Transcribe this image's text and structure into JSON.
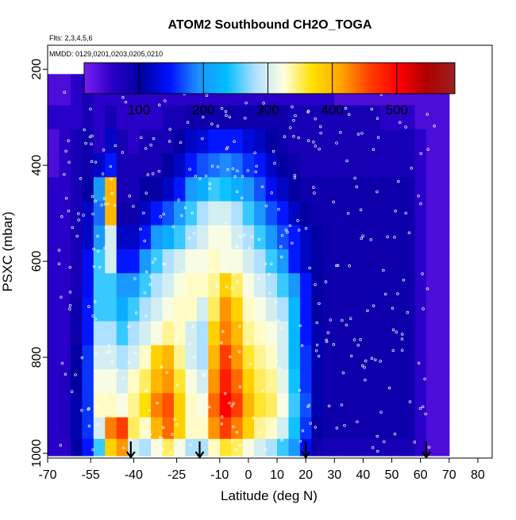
{
  "chart_data": {
    "type": "heatmap",
    "title": "ATOM2 Southbound CH2O_TOGA",
    "flights_note": "Flts: 2,3,4,5,6",
    "dates_note": "MMDD: 0129,0201,0203,0205,0210",
    "xlabel": "Latitude (deg N)",
    "ylabel": "PSXC (mbar)",
    "xlim": [
      -70,
      85
    ],
    "ylim": [
      1010,
      150
    ],
    "x_ticks": [
      -70,
      -55,
      -40,
      -25,
      -10,
      0,
      10,
      20,
      30,
      40,
      50,
      60,
      70,
      80
    ],
    "x_ticks_labels": [
      "-70",
      "-55",
      "-40",
      "-25",
      "-10",
      "0",
      "10",
      "20",
      "30",
      "40",
      "50",
      "60",
      "70",
      "80"
    ],
    "y_ticks": [
      200,
      400,
      600,
      800,
      1000
    ],
    "y_ticks_labels": [
      "200",
      "400",
      "600",
      "800",
      "1000"
    ],
    "colorbar": {
      "min": 15,
      "max": 590,
      "ticks": [
        100,
        200,
        300,
        400,
        500
      ],
      "tick_labels": [
        "100",
        "200",
        "300",
        "400",
        "500"
      ],
      "colors": [
        "#7a1ef0",
        "#2a00c8",
        "#0000a0",
        "#0010ff",
        "#1e90ff",
        "#00bfff",
        "#b0e0ff",
        "#ffffe0",
        "#ffe000",
        "#ffa500",
        "#ff4000",
        "#ff0000",
        "#b00000",
        "#9b2020"
      ]
    },
    "lat_bins": [
      -70,
      -66,
      -62,
      -58,
      -54,
      -50,
      -46,
      -42,
      -38,
      -34,
      -30,
      -26,
      -22,
      -18,
      -14,
      -10,
      -6,
      -2,
      2,
      6,
      10,
      14,
      18,
      22,
      26,
      30,
      34,
      38,
      42,
      46,
      50,
      54,
      58,
      62,
      66,
      70
    ],
    "pressure_levels": [
      250,
      300,
      350,
      400,
      450,
      500,
      550,
      600,
      650,
      700,
      750,
      800,
      850,
      900,
      950,
      990
    ],
    "values": [
      [
        40,
        40,
        60,
        80,
        60,
        60,
        60,
        60,
        60,
        60,
        60,
        60,
        60,
        60,
        60,
        60,
        60,
        60,
        60,
        60,
        60,
        60,
        60,
        60,
        60,
        40,
        40,
        40,
        40,
        40,
        40,
        40,
        40,
        40,
        40
      ],
      [
        60,
        60,
        60,
        80,
        60,
        80,
        60,
        60,
        60,
        60,
        80,
        80,
        90,
        90,
        90,
        90,
        90,
        90,
        90,
        90,
        90,
        80,
        80,
        80,
        80,
        80,
        80,
        80,
        80,
        60,
        60,
        60,
        40,
        40,
        40
      ],
      [
        40,
        60,
        80,
        90,
        60,
        120,
        80,
        60,
        80,
        80,
        80,
        100,
        120,
        130,
        150,
        150,
        150,
        130,
        120,
        100,
        90,
        80,
        80,
        80,
        80,
        80,
        80,
        80,
        80,
        80,
        80,
        80,
        60,
        40,
        40
      ],
      [
        40,
        60,
        80,
        90,
        120,
        150,
        80,
        80,
        80,
        80,
        100,
        120,
        150,
        170,
        180,
        190,
        180,
        160,
        150,
        120,
        100,
        90,
        80,
        80,
        80,
        80,
        80,
        80,
        80,
        80,
        80,
        80,
        60,
        40,
        40
      ],
      [
        60,
        60,
        80,
        100,
        200,
        400,
        80,
        80,
        100,
        100,
        120,
        150,
        200,
        220,
        250,
        240,
        220,
        200,
        170,
        140,
        120,
        100,
        90,
        90,
        90,
        90,
        90,
        90,
        90,
        90,
        90,
        90,
        60,
        40,
        40
      ],
      [
        60,
        60,
        80,
        120,
        180,
        400,
        90,
        90,
        120,
        150,
        170,
        200,
        250,
        280,
        300,
        300,
        280,
        250,
        200,
        170,
        150,
        120,
        100,
        90,
        90,
        90,
        90,
        90,
        90,
        90,
        90,
        90,
        60,
        40,
        40
      ],
      [
        60,
        60,
        80,
        120,
        200,
        300,
        120,
        120,
        150,
        200,
        220,
        250,
        280,
        300,
        320,
        320,
        300,
        280,
        250,
        200,
        170,
        150,
        120,
        100,
        90,
        90,
        90,
        90,
        90,
        90,
        90,
        90,
        60,
        40,
        40
      ],
      [
        60,
        60,
        80,
        140,
        250,
        300,
        150,
        150,
        200,
        250,
        280,
        300,
        320,
        320,
        330,
        320,
        320,
        300,
        280,
        250,
        200,
        150,
        120,
        100,
        90,
        90,
        90,
        90,
        90,
        90,
        90,
        90,
        60,
        40,
        40
      ],
      [
        60,
        60,
        80,
        140,
        250,
        250,
        200,
        200,
        250,
        280,
        300,
        320,
        330,
        330,
        340,
        380,
        350,
        320,
        300,
        280,
        250,
        200,
        150,
        100,
        90,
        90,
        90,
        90,
        90,
        90,
        90,
        90,
        60,
        40,
        40
      ],
      [
        60,
        60,
        90,
        150,
        250,
        250,
        220,
        250,
        280,
        300,
        320,
        330,
        330,
        300,
        350,
        420,
        380,
        330,
        320,
        300,
        280,
        230,
        150,
        100,
        90,
        90,
        90,
        90,
        90,
        90,
        90,
        90,
        60,
        40,
        40
      ],
      [
        60,
        60,
        90,
        150,
        280,
        280,
        250,
        280,
        300,
        320,
        340,
        330,
        300,
        280,
        380,
        430,
        400,
        340,
        330,
        320,
        300,
        230,
        150,
        110,
        90,
        90,
        90,
        90,
        90,
        90,
        90,
        90,
        60,
        40,
        40
      ],
      [
        60,
        60,
        100,
        160,
        300,
        300,
        280,
        300,
        330,
        380,
        400,
        340,
        300,
        280,
        400,
        460,
        420,
        360,
        340,
        330,
        300,
        230,
        160,
        110,
        90,
        90,
        90,
        90,
        90,
        90,
        90,
        90,
        60,
        40,
        40
      ],
      [
        60,
        70,
        100,
        160,
        320,
        320,
        300,
        330,
        350,
        400,
        420,
        360,
        320,
        300,
        420,
        480,
        440,
        380,
        350,
        340,
        310,
        240,
        160,
        110,
        90,
        90,
        90,
        90,
        90,
        90,
        90,
        90,
        60,
        40,
        40
      ],
      [
        60,
        70,
        110,
        160,
        330,
        330,
        320,
        340,
        370,
        430,
        450,
        380,
        330,
        320,
        440,
        500,
        460,
        400,
        360,
        350,
        320,
        250,
        170,
        110,
        90,
        90,
        90,
        90,
        90,
        90,
        90,
        90,
        60,
        40,
        40
      ],
      [
        60,
        70,
        110,
        160,
        300,
        430,
        460,
        350,
        330,
        400,
        440,
        380,
        330,
        330,
        420,
        460,
        430,
        380,
        340,
        330,
        300,
        240,
        160,
        100,
        90,
        90,
        90,
        90,
        90,
        90,
        90,
        90,
        60,
        40,
        40
      ],
      [
        60,
        60,
        100,
        150,
        250,
        380,
        420,
        300,
        280,
        320,
        350,
        320,
        280,
        280,
        330,
        360,
        350,
        320,
        300,
        280,
        250,
        200,
        140,
        90,
        80,
        80,
        80,
        80,
        80,
        80,
        80,
        80,
        60,
        40,
        40
      ]
    ],
    "arrow_latitudes": [
      -41,
      -17,
      20,
      62
    ]
  }
}
